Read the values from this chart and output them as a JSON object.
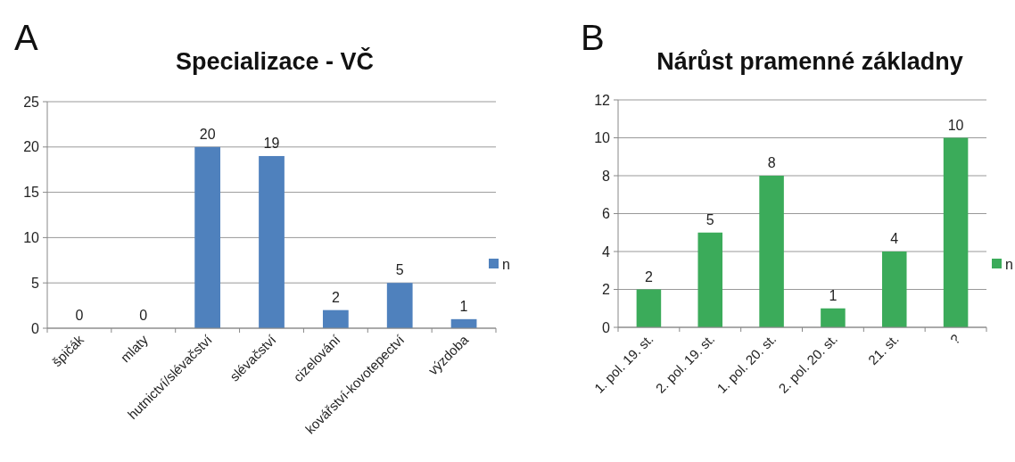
{
  "chart_data": [
    {
      "type": "bar",
      "title": "Specializace - VČ",
      "annotations": [
        "A"
      ],
      "categories": [
        "špičák",
        "mlaty",
        "hutnictví/slévačství",
        "slévačství",
        "cizelování",
        "kovářství-kovotepectví",
        "výzdoba"
      ],
      "series": [
        {
          "name": "n",
          "color": "#4f81bd",
          "values": [
            0,
            0,
            20,
            19,
            2,
            5,
            1
          ]
        }
      ],
      "ylim": [
        0,
        25
      ],
      "yticks": [
        0,
        5,
        10,
        15,
        20,
        25
      ],
      "grid": "y",
      "legend": "right",
      "data_labels": true
    },
    {
      "type": "bar",
      "title": "Nárůst pramenné základny",
      "annotations": [
        "B"
      ],
      "categories": [
        "1. pol. 19. st.",
        "2. pol. 19. st.",
        "1. pol. 20. st.",
        "2. pol. 20. st.",
        "21. st.",
        "?"
      ],
      "series": [
        {
          "name": "n",
          "color": "#3bab5a",
          "values": [
            2,
            5,
            8,
            1,
            4,
            10
          ]
        }
      ],
      "ylim": [
        0,
        12
      ],
      "yticks": [
        0,
        2,
        4,
        6,
        8,
        10,
        12
      ],
      "grid": "y",
      "legend": "right",
      "data_labels": true
    }
  ]
}
